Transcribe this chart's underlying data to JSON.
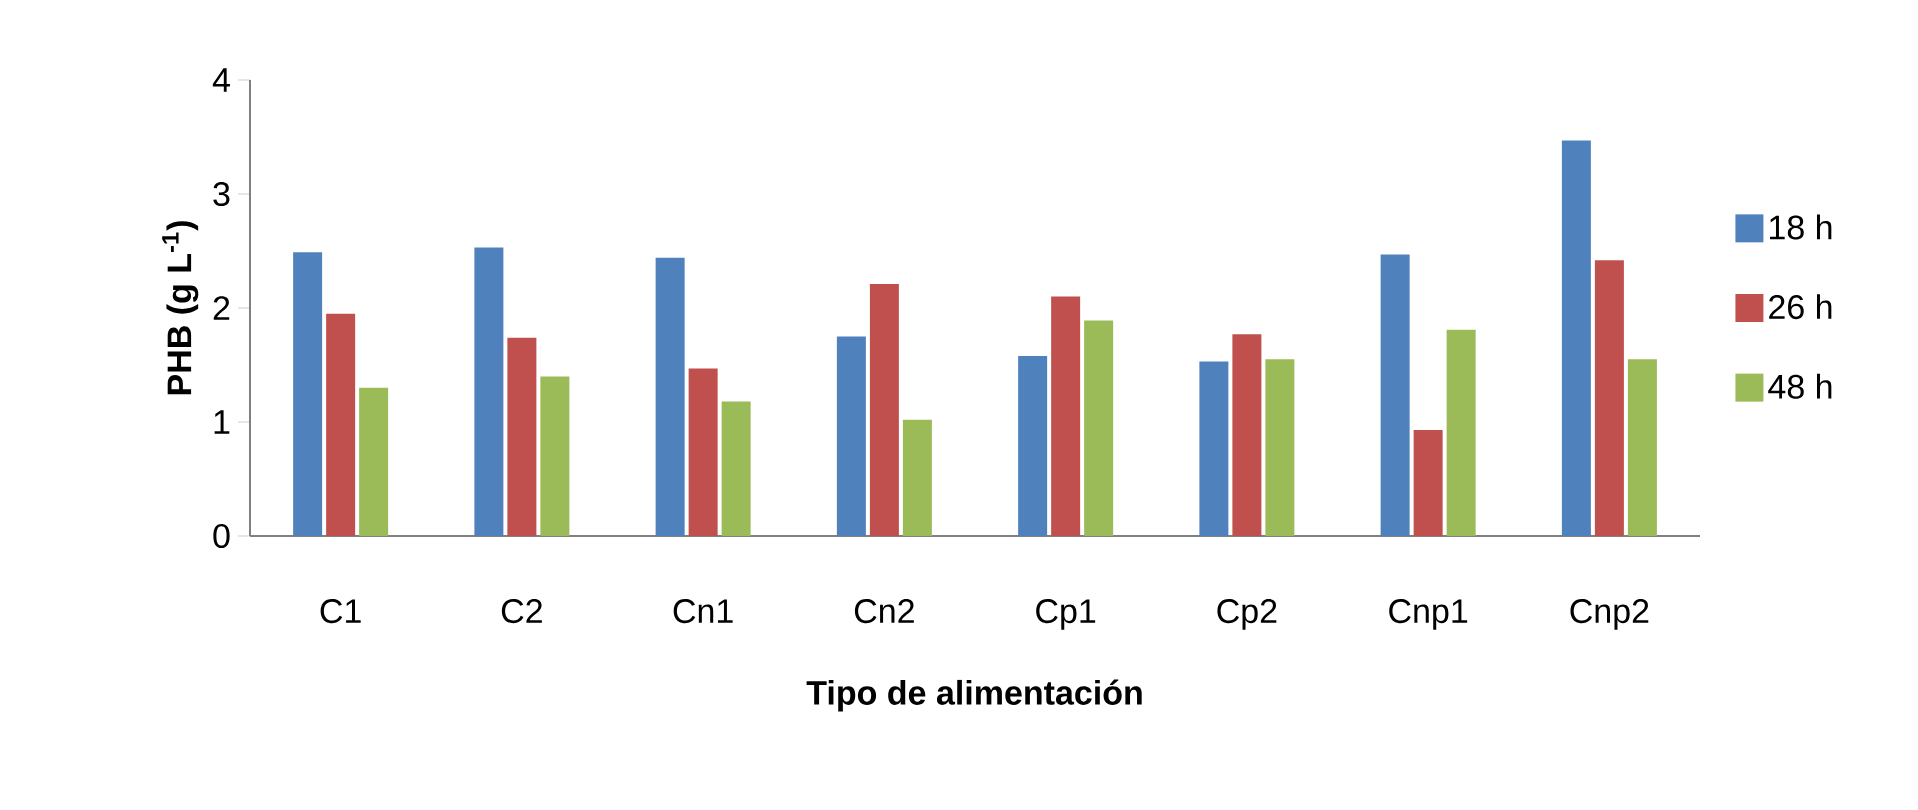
{
  "chart_data": {
    "type": "bar",
    "xlabel": "Tipo de alimentación",
    "ylabel": "PHB (g L$^{-1}$)",
    "categories": [
      "C1",
      "C2",
      "Cn1",
      "Cn2",
      "Cp1",
      "Cp2",
      "Cnp1",
      "Cnp2"
    ],
    "series": [
      {
        "name": "18 h",
        "color": "#4f81bd",
        "values": [
          2.49,
          2.53,
          2.44,
          1.75,
          1.58,
          1.53,
          2.47,
          3.47
        ]
      },
      {
        "name": "26 h",
        "color": "#c0504d",
        "values": [
          1.95,
          1.74,
          1.47,
          2.21,
          2.1,
          1.77,
          0.93,
          2.42
        ]
      },
      {
        "name": "48 h",
        "color": "#9bbb59",
        "values": [
          1.3,
          1.4,
          1.18,
          1.02,
          1.89,
          1.55,
          1.81,
          1.55
        ]
      }
    ],
    "ylim": [
      0,
      4
    ],
    "yticks": [
      0,
      1,
      2,
      3,
      4
    ],
    "grid": false,
    "legend": "right"
  }
}
